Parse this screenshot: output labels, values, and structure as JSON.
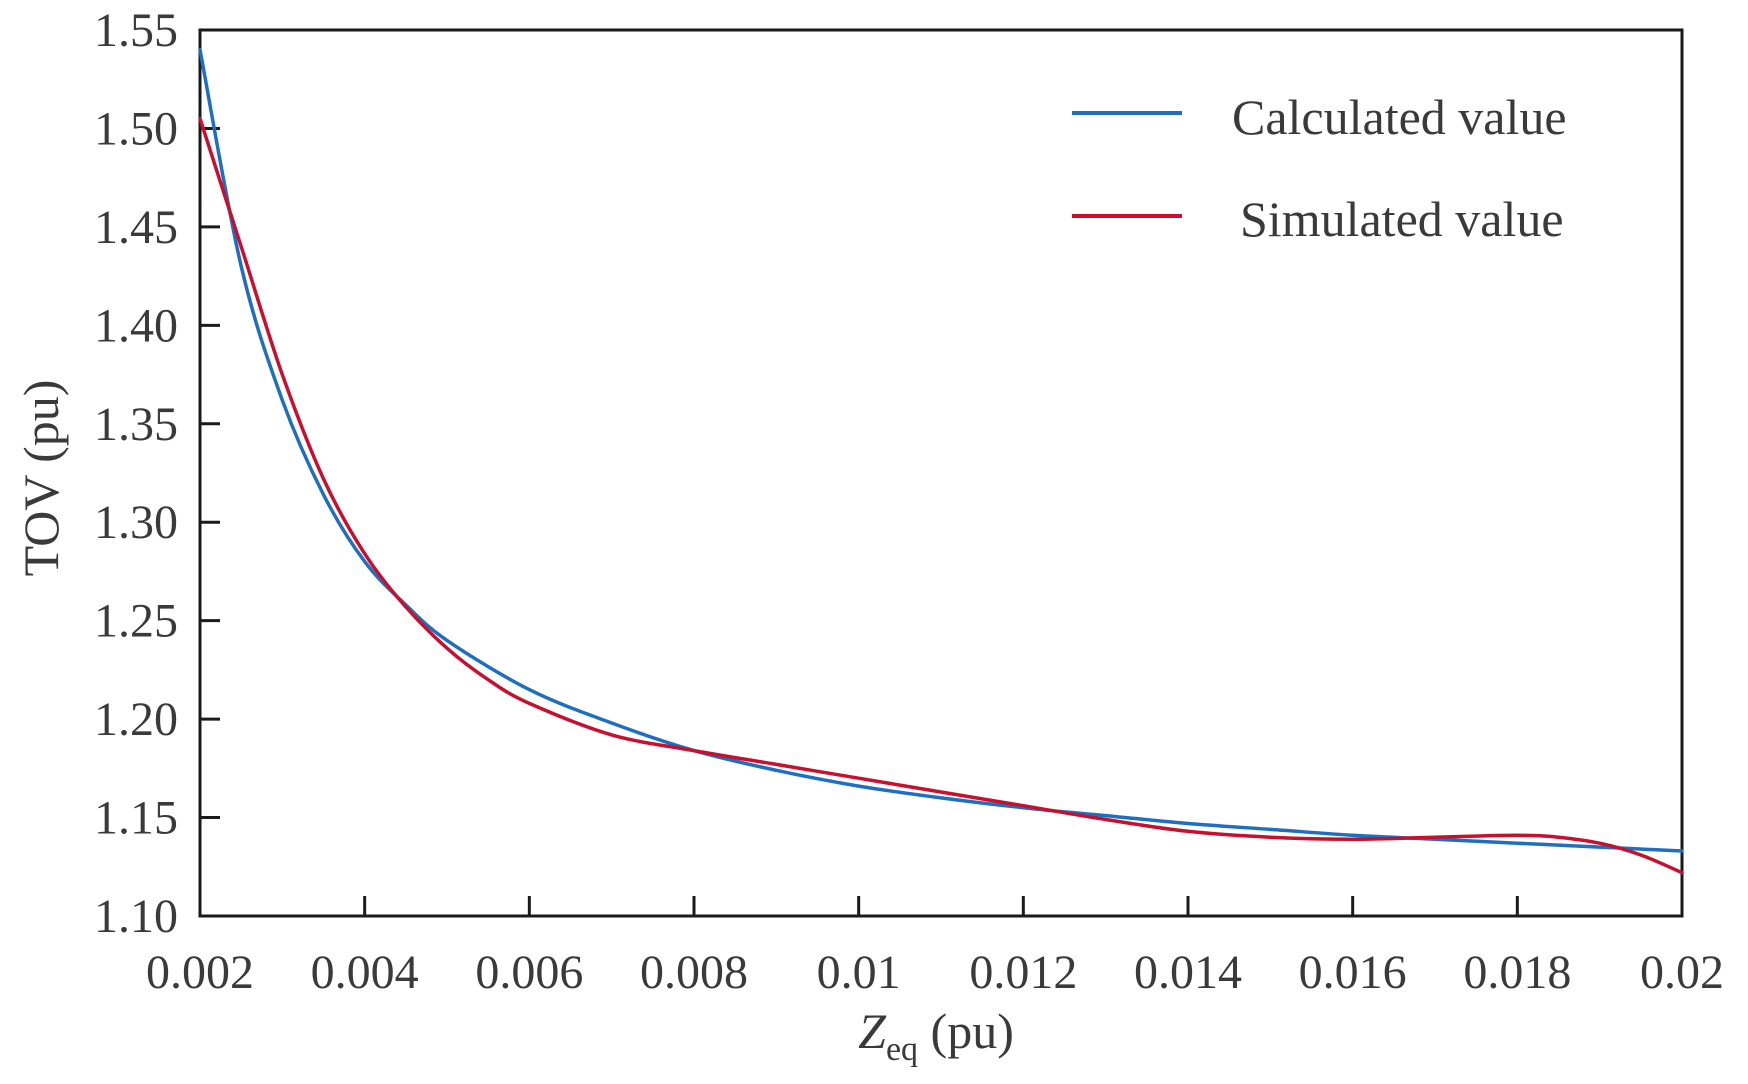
{
  "chart_data": {
    "type": "line",
    "title": "",
    "xlabel_main": "Z",
    "xlabel_sub": "eq",
    "xlabel_unit": " (pu)",
    "ylabel": "TOV (pu)",
    "xlim": [
      0.002,
      0.02
    ],
    "ylim": [
      1.1,
      1.55
    ],
    "grid": false,
    "legend_position": "top-right",
    "x_ticks": [
      {
        "value": 0.002,
        "label": "0.002"
      },
      {
        "value": 0.004,
        "label": "0.004"
      },
      {
        "value": 0.006,
        "label": "0.006"
      },
      {
        "value": 0.008,
        "label": "0.008"
      },
      {
        "value": 0.01,
        "label": "0.01"
      },
      {
        "value": 0.012,
        "label": "0.012"
      },
      {
        "value": 0.014,
        "label": "0.014"
      },
      {
        "value": 0.016,
        "label": "0.016"
      },
      {
        "value": 0.018,
        "label": "0.018"
      },
      {
        "value": 0.02,
        "label": "0.02"
      }
    ],
    "y_ticks": [
      {
        "value": 1.1,
        "label": "1.10"
      },
      {
        "value": 1.15,
        "label": "1.15"
      },
      {
        "value": 1.2,
        "label": "1.20"
      },
      {
        "value": 1.25,
        "label": "1.25"
      },
      {
        "value": 1.3,
        "label": "1.30"
      },
      {
        "value": 1.35,
        "label": "1.35"
      },
      {
        "value": 1.4,
        "label": "1.40"
      },
      {
        "value": 1.45,
        "label": "1.45"
      },
      {
        "value": 1.5,
        "label": "1.50"
      },
      {
        "value": 1.55,
        "label": "1.55"
      }
    ],
    "series": [
      {
        "name": "Calculated value",
        "color": "#1f6fc0",
        "x": [
          0.002,
          0.0025,
          0.003,
          0.0035,
          0.004,
          0.0045,
          0.005,
          0.006,
          0.007,
          0.008,
          0.009,
          0.01,
          0.011,
          0.012,
          0.013,
          0.014,
          0.015,
          0.016,
          0.017,
          0.018,
          0.019,
          0.02
        ],
        "y": [
          1.54,
          1.43,
          1.362,
          1.314,
          1.28,
          1.258,
          1.24,
          1.215,
          1.198,
          1.184,
          1.174,
          1.166,
          1.16,
          1.155,
          1.151,
          1.147,
          1.144,
          1.141,
          1.139,
          1.137,
          1.135,
          1.133
        ]
      },
      {
        "name": "Simulated value",
        "color": "#c8102e",
        "x": [
          0.002,
          0.0025,
          0.003,
          0.0035,
          0.004,
          0.0045,
          0.005,
          0.0055,
          0.006,
          0.007,
          0.008,
          0.009,
          0.01,
          0.011,
          0.012,
          0.013,
          0.014,
          0.015,
          0.016,
          0.017,
          0.018,
          0.0185,
          0.019,
          0.0195,
          0.02
        ],
        "y": [
          1.505,
          1.44,
          1.375,
          1.322,
          1.284,
          1.257,
          1.236,
          1.22,
          1.208,
          1.192,
          1.184,
          1.177,
          1.17,
          1.163,
          1.156,
          1.149,
          1.143,
          1.14,
          1.139,
          1.14,
          1.141,
          1.14,
          1.137,
          1.131,
          1.122
        ]
      }
    ]
  }
}
